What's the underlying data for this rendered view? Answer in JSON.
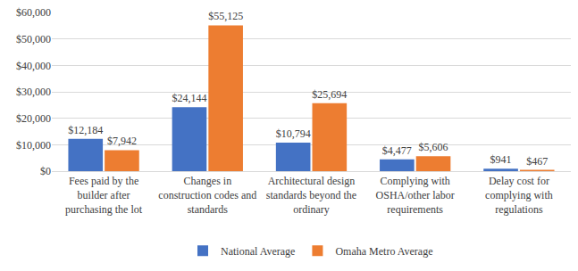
{
  "chart_data": {
    "type": "bar",
    "categories": [
      "Fees paid by the builder after purchasing the lot",
      "Changes in construction codes and standards",
      "Architectural design standards beyond the ordinary",
      "Complying with OSHA/other labor requirements",
      "Delay cost for complying with regulations"
    ],
    "series": [
      {
        "name": "National Average",
        "color": "#4472c4",
        "values": [
          12184,
          24144,
          10794,
          4477,
          941
        ],
        "value_labels": [
          "$12,184",
          "$24,144",
          "$10,794",
          "$4,477",
          "$941"
        ]
      },
      {
        "name": "Omaha Metro Average",
        "color": "#ed7d31",
        "values": [
          7942,
          55125,
          25694,
          5606,
          467
        ],
        "value_labels": [
          "$7,942",
          "$55,125",
          "$25,694",
          "$5,606",
          "$467"
        ]
      }
    ],
    "ylim": [
      0,
      60000
    ],
    "yticks": [
      {
        "value": 0,
        "label": "$0"
      },
      {
        "value": 10000,
        "label": "$10,000"
      },
      {
        "value": 20000,
        "label": "$20,000"
      },
      {
        "value": 30000,
        "label": "$30,000"
      },
      {
        "value": 40000,
        "label": "$40,000"
      },
      {
        "value": 50000,
        "label": "$50,000"
      },
      {
        "value": 60000,
        "label": "$60,000"
      }
    ],
    "grid": true,
    "legend": "bottom",
    "data_labels": true
  }
}
